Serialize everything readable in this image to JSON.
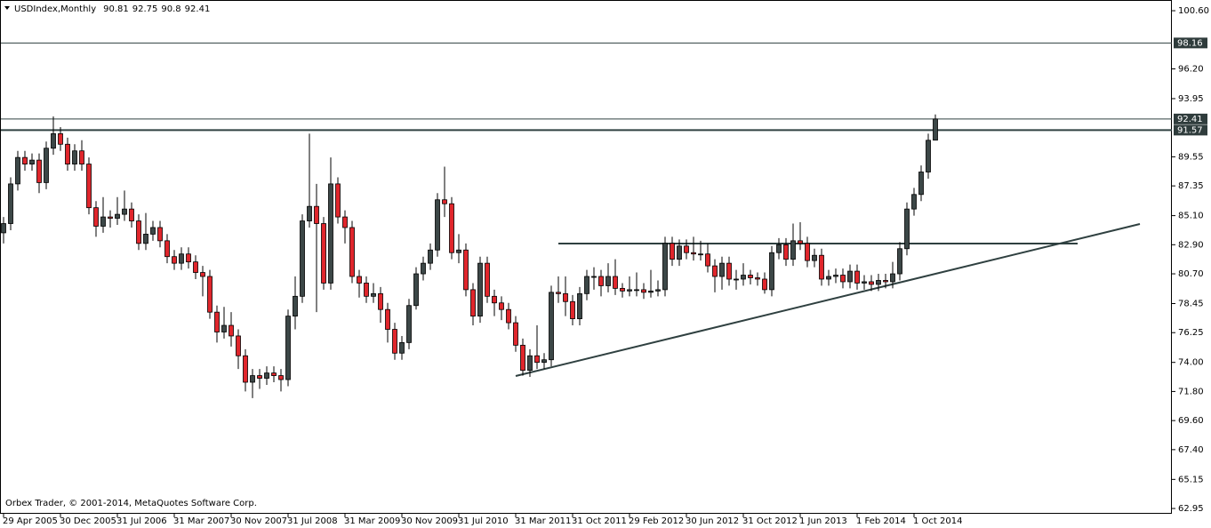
{
  "chart_data": {
    "type": "candlestick",
    "title": "USDIndex,Monthly",
    "footer": "Orbex Trader, © 2001-2014, MetaQuotes Software Corp.",
    "categories": [
      "29 Apr 2005",
      null,
      null,
      null,
      null,
      null,
      null,
      null,
      "30 Dec 2005",
      null,
      null,
      null,
      null,
      null,
      null,
      null,
      "31 Jul 2006",
      null,
      null,
      null,
      null,
      null,
      null,
      null,
      "31 Mar 2007",
      null,
      null,
      null,
      null,
      null,
      null,
      null,
      "30 Nov 2007",
      null,
      null,
      null,
      null,
      null,
      null,
      null,
      "31 Jul 2008",
      null,
      null,
      null,
      null,
      null,
      null,
      null,
      "31 Mar 2009",
      null,
      null,
      null,
      null,
      null,
      null,
      null,
      "30 Nov 2009",
      null,
      null,
      null,
      null,
      null,
      null,
      null,
      "31 Jul 2010",
      null,
      null,
      null,
      null,
      null,
      null,
      null,
      "31 Mar 2011",
      null,
      null,
      null,
      null,
      null,
      null,
      null,
      "31 Oct 2011",
      null,
      null,
      null,
      null,
      null,
      null,
      null,
      "29 Feb 2012",
      null,
      null,
      null,
      null,
      null,
      null,
      null,
      "30 Jun 2012",
      null,
      null,
      null,
      null,
      null,
      null,
      null,
      "31 Oct 2012",
      null,
      null,
      null,
      null,
      null,
      null,
      null,
      "1 Jun 2013",
      null,
      null,
      null,
      null,
      null,
      null,
      null,
      "1 Feb 2014",
      null,
      null,
      null,
      null,
      null,
      null,
      null,
      "1 Oct 2014",
      null,
      null,
      null
    ],
    "open": [
      83.8,
      84.5,
      87.5,
      89.5,
      89.0,
      89.3,
      87.6,
      90.2,
      91.3,
      90.5,
      89.0,
      90.0,
      89.0,
      85.7,
      84.3,
      85.0,
      84.9,
      85.2,
      85.6,
      84.7,
      83.0,
      83.7,
      84.2,
      83.2,
      82.0,
      81.5,
      82.2,
      81.6,
      80.8,
      80.5,
      77.8,
      76.3,
      76.8,
      76.0,
      74.5,
      72.5,
      73.0,
      72.8,
      73.2,
      73.0,
      72.7,
      77.5,
      79.0,
      84.7,
      85.8,
      84.5,
      80.0,
      87.5,
      85.0,
      84.2,
      80.5,
      80.0,
      79.0,
      79.2,
      78.0,
      76.5,
      74.7,
      75.5,
      78.3,
      80.7,
      81.5,
      82.5,
      86.3,
      86.0,
      82.3,
      82.5,
      79.5,
      77.5,
      81.5,
      79.0,
      78.5,
      78.0,
      77.0,
      75.3,
      73.4,
      74.5,
      74.0,
      74.2,
      79.3,
      79.2,
      78.6,
      77.3,
      79.2,
      80.5,
      80.5,
      79.8,
      80.5,
      79.6,
      79.4,
      79.5,
      79.5,
      79.3,
      79.4,
      79.5,
      83.0,
      81.8,
      82.8,
      82.3,
      82.2,
      82.2,
      81.3,
      80.5,
      81.5,
      80.3,
      80.3,
      80.6,
      80.4,
      80.3,
      79.5,
      82.3,
      82.9,
      81.8,
      83.2,
      83.0,
      81.7,
      82.1,
      80.3,
      80.5,
      80.6,
      80.1,
      80.9,
      80.0,
      80.1,
      79.9,
      80.2,
      80.1,
      80.7,
      82.6,
      85.6,
      86.7,
      88.4,
      90.81
    ],
    "high": [
      85.0,
      88.0,
      90.0,
      90.0,
      89.8,
      89.8,
      90.7,
      92.6,
      91.8,
      91.0,
      90.5,
      90.8,
      89.5,
      86.2,
      86.5,
      85.5,
      86.5,
      87.0,
      86.1,
      85.2,
      85.3,
      84.7,
      84.7,
      83.7,
      82.5,
      82.7,
      82.7,
      82.1,
      81.3,
      81.0,
      78.3,
      78.2,
      77.8,
      76.5,
      75.0,
      73.5,
      73.5,
      73.7,
      73.7,
      73.5,
      78.0,
      80.5,
      85.2,
      91.3,
      87.5,
      85.0,
      89.5,
      88.0,
      85.5,
      84.7,
      81.0,
      80.5,
      80.0,
      79.7,
      78.5,
      77.0,
      76.0,
      78.8,
      81.2,
      82.0,
      83.0,
      86.8,
      88.8,
      86.5,
      83.7,
      83.0,
      80.0,
      82.0,
      82.0,
      79.5,
      79.0,
      78.5,
      77.5,
      75.8,
      75.0,
      76.8,
      74.7,
      79.8,
      80.5,
      80.5,
      79.1,
      79.7,
      81.0,
      81.2,
      81.0,
      81.5,
      81.8,
      80.0,
      80.5,
      80.8,
      80.0,
      81.0,
      80.2,
      83.5,
      83.5,
      83.3,
      83.3,
      83.5,
      83.2,
      83.0,
      81.8,
      82.0,
      82.0,
      81.0,
      81.5,
      81.0,
      80.8,
      80.8,
      82.8,
      83.4,
      83.4,
      84.5,
      84.6,
      83.5,
      82.6,
      82.6,
      81.0,
      81.1,
      81.1,
      81.4,
      81.4,
      80.6,
      80.6,
      80.7,
      80.7,
      81.6,
      83.1,
      86.1,
      87.2,
      88.9,
      91.3,
      92.75
    ],
    "low": [
      83.0,
      84.0,
      87.0,
      88.5,
      88.5,
      86.8,
      87.1,
      89.7,
      90.0,
      88.5,
      88.5,
      88.5,
      85.2,
      83.5,
      83.8,
      84.2,
      84.4,
      84.7,
      84.2,
      82.5,
      82.5,
      83.2,
      82.7,
      81.5,
      81.0,
      81.0,
      81.1,
      80.3,
      79.0,
      77.3,
      75.5,
      75.8,
      75.2,
      73.5,
      71.8,
      71.3,
      72.0,
      72.3,
      72.5,
      71.8,
      72.2,
      76.5,
      78.5,
      84.2,
      77.8,
      79.5,
      79.5,
      84.5,
      83.0,
      80.0,
      78.9,
      78.5,
      78.5,
      77.0,
      75.5,
      74.2,
      74.2,
      75.0,
      78.0,
      80.2,
      81.0,
      82.0,
      85.0,
      81.8,
      81.5,
      79.0,
      76.8,
      77.0,
      78.5,
      77.5,
      77.2,
      76.5,
      74.8,
      73.0,
      72.9,
      73.5,
      73.5,
      73.7,
      78.5,
      77.5,
      76.8,
      76.8,
      78.7,
      79.5,
      79.0,
      79.3,
      79.1,
      78.9,
      79.0,
      79.0,
      78.8,
      78.9,
      79.0,
      79.0,
      81.3,
      81.3,
      81.8,
      81.7,
      81.7,
      80.8,
      79.3,
      79.5,
      79.8,
      79.5,
      79.8,
      79.9,
      79.8,
      79.2,
      79.0,
      81.8,
      81.3,
      81.3,
      82.5,
      81.2,
      81.2,
      79.8,
      79.8,
      80.0,
      79.6,
      79.6,
      79.5,
      79.5,
      79.4,
      79.4,
      79.6,
      79.6,
      80.2,
      82.1,
      85.1,
      86.2,
      87.9,
      90.8
    ],
    "close": [
      84.5,
      87.5,
      89.5,
      89.0,
      89.3,
      87.6,
      90.2,
      91.3,
      90.5,
      89.0,
      90.0,
      89.0,
      85.7,
      84.3,
      85.0,
      84.9,
      85.2,
      85.6,
      84.7,
      83.0,
      83.7,
      84.2,
      83.2,
      82.0,
      81.5,
      82.2,
      81.6,
      80.8,
      80.5,
      77.8,
      76.3,
      76.8,
      76.0,
      74.5,
      72.5,
      73.0,
      72.8,
      73.2,
      73.0,
      72.7,
      77.5,
      79.0,
      84.7,
      85.8,
      84.5,
      80.0,
      87.5,
      85.0,
      84.2,
      80.5,
      80.0,
      79.0,
      79.2,
      78.0,
      76.5,
      74.7,
      75.5,
      78.3,
      80.7,
      81.5,
      82.5,
      86.3,
      86.0,
      82.3,
      82.5,
      79.5,
      77.5,
      81.5,
      79.0,
      78.5,
      78.0,
      77.0,
      75.3,
      73.4,
      74.5,
      74.0,
      74.2,
      79.3,
      79.2,
      78.6,
      77.3,
      79.2,
      80.5,
      80.5,
      79.8,
      80.5,
      79.6,
      79.4,
      79.5,
      79.5,
      79.3,
      79.4,
      79.5,
      83.0,
      81.8,
      82.8,
      82.3,
      82.2,
      82.2,
      81.3,
      80.5,
      81.5,
      80.3,
      80.3,
      80.6,
      80.4,
      80.3,
      79.5,
      82.3,
      82.9,
      81.8,
      83.2,
      83.0,
      81.7,
      82.1,
      80.3,
      80.5,
      80.6,
      80.1,
      80.9,
      80.0,
      80.1,
      79.9,
      80.2,
      80.1,
      80.7,
      82.6,
      85.6,
      86.7,
      88.4,
      90.8,
      92.41
    ],
    "up_color": "#3c4747",
    "down_color": "#e0262c",
    "levels": [
      {
        "value": 98.16,
        "label": "98.16"
      },
      {
        "value": 91.57,
        "label": "91.57"
      }
    ],
    "last_price_label": "92.41",
    "ylim": [
      62.55,
      101.41
    ],
    "yticks": [
      {
        "value": 100.6,
        "label": "100.60"
      },
      {
        "value": 96.2,
        "label": "96.20"
      },
      {
        "value": 93.95,
        "label": "93.95"
      },
      {
        "value": 89.55,
        "label": "89.55"
      },
      {
        "value": 87.35,
        "label": "87.35"
      },
      {
        "value": 85.1,
        "label": "85.10"
      },
      {
        "value": 82.9,
        "label": "82.90"
      },
      {
        "value": 80.7,
        "label": "80.70"
      },
      {
        "value": 78.45,
        "label": "78.45"
      },
      {
        "value": 76.25,
        "label": "76.25"
      },
      {
        "value": 74,
        "label": "74.00"
      },
      {
        "value": 71.8,
        "label": "71.80"
      },
      {
        "value": 69.6,
        "label": "69.60"
      },
      {
        "value": 67.4,
        "label": "67.40"
      },
      {
        "value": 65.15,
        "label": "65.15"
      },
      {
        "value": 62.95,
        "label": "62.95"
      }
    ]
  }
}
